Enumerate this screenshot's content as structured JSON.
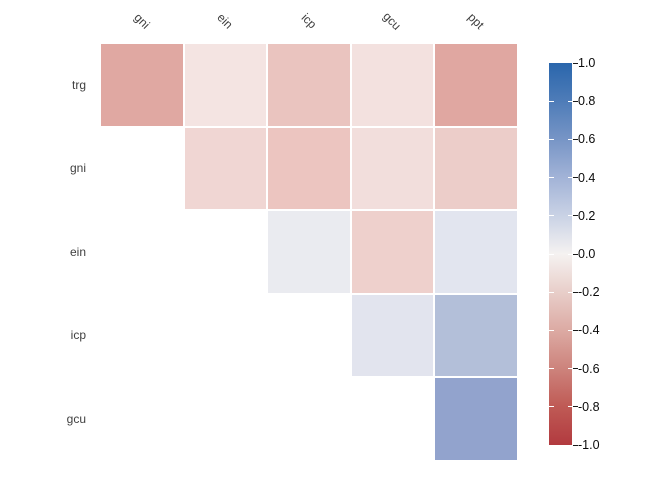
{
  "chart_data": {
    "type": "heatmap",
    "subtype": "correlation-matrix-upper-triangle",
    "title": "",
    "variables": [
      "trg",
      "gni",
      "ein",
      "icp",
      "gcu",
      "ppt"
    ],
    "row_labels": [
      "trg",
      "gni",
      "ein",
      "icp",
      "gcu"
    ],
    "col_labels": [
      "gni",
      "ein",
      "icp",
      "gcu",
      "ppt"
    ],
    "cells": [
      {
        "row": "trg",
        "col": "gni",
        "value": -0.4,
        "color": "#e0a8a2"
      },
      {
        "row": "trg",
        "col": "ein",
        "value": -0.09,
        "color": "#f4e4e2"
      },
      {
        "row": "trg",
        "col": "icp",
        "value": -0.25,
        "color": "#eac4bf"
      },
      {
        "row": "trg",
        "col": "gcu",
        "value": -0.1,
        "color": "#f3e1df"
      },
      {
        "row": "trg",
        "col": "ppt",
        "value": -0.39,
        "color": "#e0a7a1"
      },
      {
        "row": "gni",
        "col": "ein",
        "value": -0.16,
        "color": "#f0d6d3"
      },
      {
        "row": "gni",
        "col": "icp",
        "value": -0.26,
        "color": "#ecc5c0"
      },
      {
        "row": "gni",
        "col": "gcu",
        "value": -0.12,
        "color": "#f2dedc"
      },
      {
        "row": "gni",
        "col": "ppt",
        "value": -0.21,
        "color": "#eccdc9"
      },
      {
        "row": "ein",
        "col": "icp",
        "value": 0.04,
        "color": "#eaebf0"
      },
      {
        "row": "ein",
        "col": "gcu",
        "value": -0.18,
        "color": "#eed0cc"
      },
      {
        "row": "ein",
        "col": "ppt",
        "value": 0.09,
        "color": "#e2e5ef"
      },
      {
        "row": "icp",
        "col": "gcu",
        "value": 0.09,
        "color": "#e2e4ee"
      },
      {
        "row": "icp",
        "col": "ppt",
        "value": 0.36,
        "color": "#b3bfd9"
      },
      {
        "row": "gcu",
        "col": "ppt",
        "value": 0.47,
        "color": "#92a3cd"
      }
    ],
    "colorbar": {
      "range": [
        -1,
        1
      ],
      "ticks": [
        "1.0",
        "0.8",
        "0.6",
        "0.4",
        "0.2",
        "0.0",
        "-0.2",
        "-0.4",
        "-0.6",
        "-0.8",
        "-1.0"
      ],
      "gradient_top_to_bottom": [
        "#2a66ac",
        "#4e7cb8",
        "#7795c6",
        "#a2b3d7",
        "#c9d2e5",
        "#f5f2f1",
        "#e8cec9",
        "#dcaaa3",
        "#cd837c",
        "#bf5a55",
        "#b23a3f"
      ],
      "position": "right"
    },
    "palette": "RdBu (blue = positive, red = negative)",
    "grid": false,
    "background": "#ffffff",
    "label_color": "#404040",
    "tick_label_color": "#0a0a0a"
  }
}
